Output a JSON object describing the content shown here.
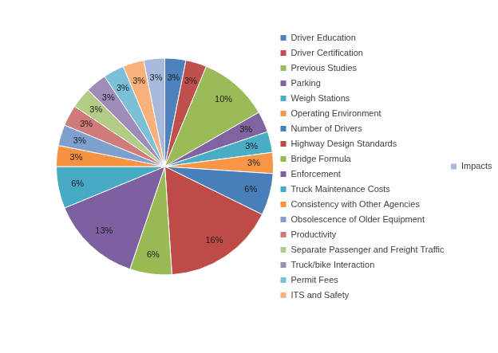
{
  "chart_data": {
    "type": "pie",
    "categories": [
      "Driver Education",
      "Driver Certification",
      "Previous Studies",
      "Parking",
      "Weigh Stations",
      "Operating Environment",
      "Number of Drivers",
      "Highway Design Standards",
      "Bridge Formula",
      "Enforcement",
      "Truck Maintenance Costs",
      "Consistency with Other Agencies",
      "Obsolescence of Older Equipment",
      "Productivity",
      "Separate Passenger and Freight Traffic",
      "Truck/bike Interaction",
      "Permit Fees",
      "ITS and Safety",
      "Impacts on State Laws"
    ],
    "values": [
      3,
      3,
      10,
      3,
      3,
      3,
      6,
      16,
      6,
      13,
      6,
      3,
      3,
      3,
      3,
      3,
      3,
      3,
      3
    ],
    "value_labels": [
      "3%",
      "3%",
      "10%",
      "3%",
      "3%",
      "3%",
      "6%",
      "16%",
      "6%",
      "13%",
      "6%",
      "3%",
      "3%",
      "3%",
      "3%",
      "3%",
      "3%",
      "3%",
      "3%"
    ],
    "colors": [
      "#4f81bd",
      "#c0504d",
      "#9bbb59",
      "#8064a2",
      "#4bacc6",
      "#f79646",
      "#4a7ebb",
      "#be4b48",
      "#98b954",
      "#7d60a0",
      "#46aac5",
      "#f69240",
      "#7f9fce",
      "#cf7b79",
      "#b3cd86",
      "#a08cb9",
      "#7bc0d7",
      "#f9b07a",
      "#a9b9dc"
    ],
    "legend": "right",
    "data_labels": true
  }
}
